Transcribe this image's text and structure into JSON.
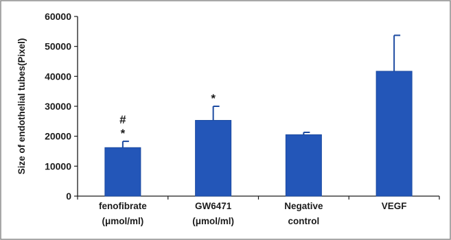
{
  "chart_data": {
    "type": "bar",
    "ylabel": "Size of endothelial tubes(Pixel)",
    "xlabel": "",
    "ylim": [
      0,
      60000
    ],
    "yticks": [
      0,
      10000,
      20000,
      30000,
      40000,
      50000,
      60000
    ],
    "ytick_labels": [
      "0",
      "10000",
      "20000",
      "30000",
      "40000",
      "50000",
      "60000"
    ],
    "categories": [
      [
        "fenofibrate",
        "(μmol/ml)"
      ],
      [
        "GW6471",
        "(μmol/ml)"
      ],
      [
        "Negative",
        "control"
      ],
      [
        "VEGF"
      ]
    ],
    "values": [
      16200,
      25300,
      20500,
      41700
    ],
    "error_upper": [
      18300,
      30000,
      21300,
      53700
    ],
    "annotations": [
      [
        "#",
        "*"
      ],
      [
        "*"
      ],
      [],
      []
    ],
    "grid": false,
    "legend": "none",
    "colors": {
      "bar": "#2356b8",
      "bar_edge": "#1b4aa0",
      "frame": "#8a8a8a",
      "axis": "#1a1a1a"
    }
  }
}
